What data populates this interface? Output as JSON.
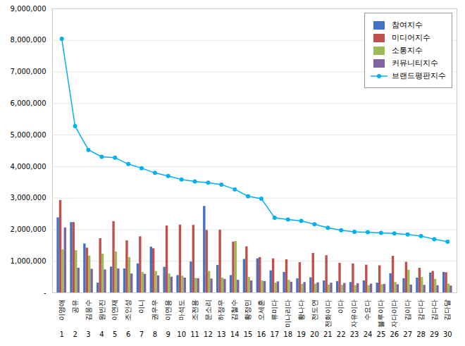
{
  "chart_data": {
    "type": "bar",
    "categories": [
      "이영애",
      "공유",
      "김응수",
      "원빈진",
      "이연재",
      "조인성",
      "이니",
      "권우우",
      "이연용",
      "마석도",
      "조전용",
      "문소리",
      "하정우",
      "김철수",
      "황정민",
      "오세훈",
      "류미다",
      "미나리다",
      "황나다",
      "전도연",
      "전화이다",
      "이다",
      "자유이다",
      "수요다",
      "블루이다",
      "자다이다",
      "김이다",
      "감다다",
      "김다다",
      "김다달"
    ],
    "ranks": [
      1,
      2,
      3,
      4,
      5,
      6,
      7,
      8,
      9,
      10,
      11,
      12,
      13,
      14,
      15,
      16,
      17,
      18,
      19,
      20,
      21,
      22,
      23,
      24,
      25,
      26,
      27,
      28,
      29,
      30
    ],
    "series": [
      {
        "name": "참여지수",
        "color": "#4472C4",
        "values": [
          2380000,
          2230000,
          1550000,
          310000,
          820000,
          760000,
          920000,
          1450000,
          810000,
          550000,
          980000,
          2740000,
          870000,
          550000,
          1060000,
          1080000,
          700000,
          650000,
          450000,
          480000,
          380000,
          360000,
          330000,
          380000,
          310000,
          610000,
          450000,
          470000,
          630000,
          650000
        ]
      },
      {
        "name": "미디어지수",
        "color": "#C0504D",
        "values": [
          2930000,
          2230000,
          1420000,
          1720000,
          2260000,
          1650000,
          1780000,
          1400000,
          2120000,
          2150000,
          2140000,
          1980000,
          1990000,
          1610000,
          1460000,
          1120000,
          1080000,
          1050000,
          960000,
          1250000,
          1180000,
          940000,
          920000,
          880000,
          860000,
          1160000,
          970000,
          780000,
          680000,
          640000
        ]
      },
      {
        "name": "소통지수",
        "color": "#9BBB59",
        "values": [
          1370000,
          1340000,
          1170000,
          1230000,
          1300000,
          1120000,
          650000,
          680000,
          600000,
          530000,
          460000,
          680000,
          470000,
          1630000,
          490000,
          380000,
          310000,
          400000,
          270000,
          280000,
          250000,
          240000,
          230000,
          230000,
          260000,
          330000,
          720000,
          490000,
          430000,
          280000
        ]
      },
      {
        "name": "커뮤니티지수",
        "color": "#8064A2",
        "values": [
          2060000,
          780000,
          750000,
          730000,
          760000,
          600000,
          590000,
          540000,
          500000,
          470000,
          450000,
          440000,
          430000,
          400000,
          380000,
          360000,
          350000,
          340000,
          330000,
          320000,
          310000,
          300000,
          290000,
          280000,
          270000,
          260000,
          250000,
          240000,
          230000,
          220000
        ]
      },
      {
        "name": "브랜드평판지수",
        "type": "line",
        "marker": "circle",
        "color": "#00B0F0",
        "values": [
          8050000,
          5280000,
          4530000,
          4310000,
          4280000,
          4080000,
          3950000,
          3800000,
          3700000,
          3590000,
          3530000,
          3490000,
          3430000,
          3280000,
          3060000,
          2980000,
          2380000,
          2320000,
          2280000,
          2170000,
          2060000,
          1980000,
          1930000,
          1920000,
          1900000,
          1880000,
          1850000,
          1800000,
          1700000,
          1620000
        ]
      }
    ],
    "ylim": [
      0,
      9000000
    ],
    "yticks": [
      {
        "value": 0,
        "label": "-"
      },
      {
        "value": 1000000,
        "label": "1,000,000"
      },
      {
        "value": 2000000,
        "label": "2,000,000"
      },
      {
        "value": 3000000,
        "label": "3,000,000"
      },
      {
        "value": 4000000,
        "label": "4,000,000"
      },
      {
        "value": 5000000,
        "label": "5,000,000"
      },
      {
        "value": 6000000,
        "label": "6,000,000"
      },
      {
        "value": 7000000,
        "label": "7,000,000"
      },
      {
        "value": 8000000,
        "label": "8,000,000"
      },
      {
        "value": 9000000,
        "label": "9,000,000"
      }
    ],
    "grid": true,
    "legend": "upper right"
  }
}
